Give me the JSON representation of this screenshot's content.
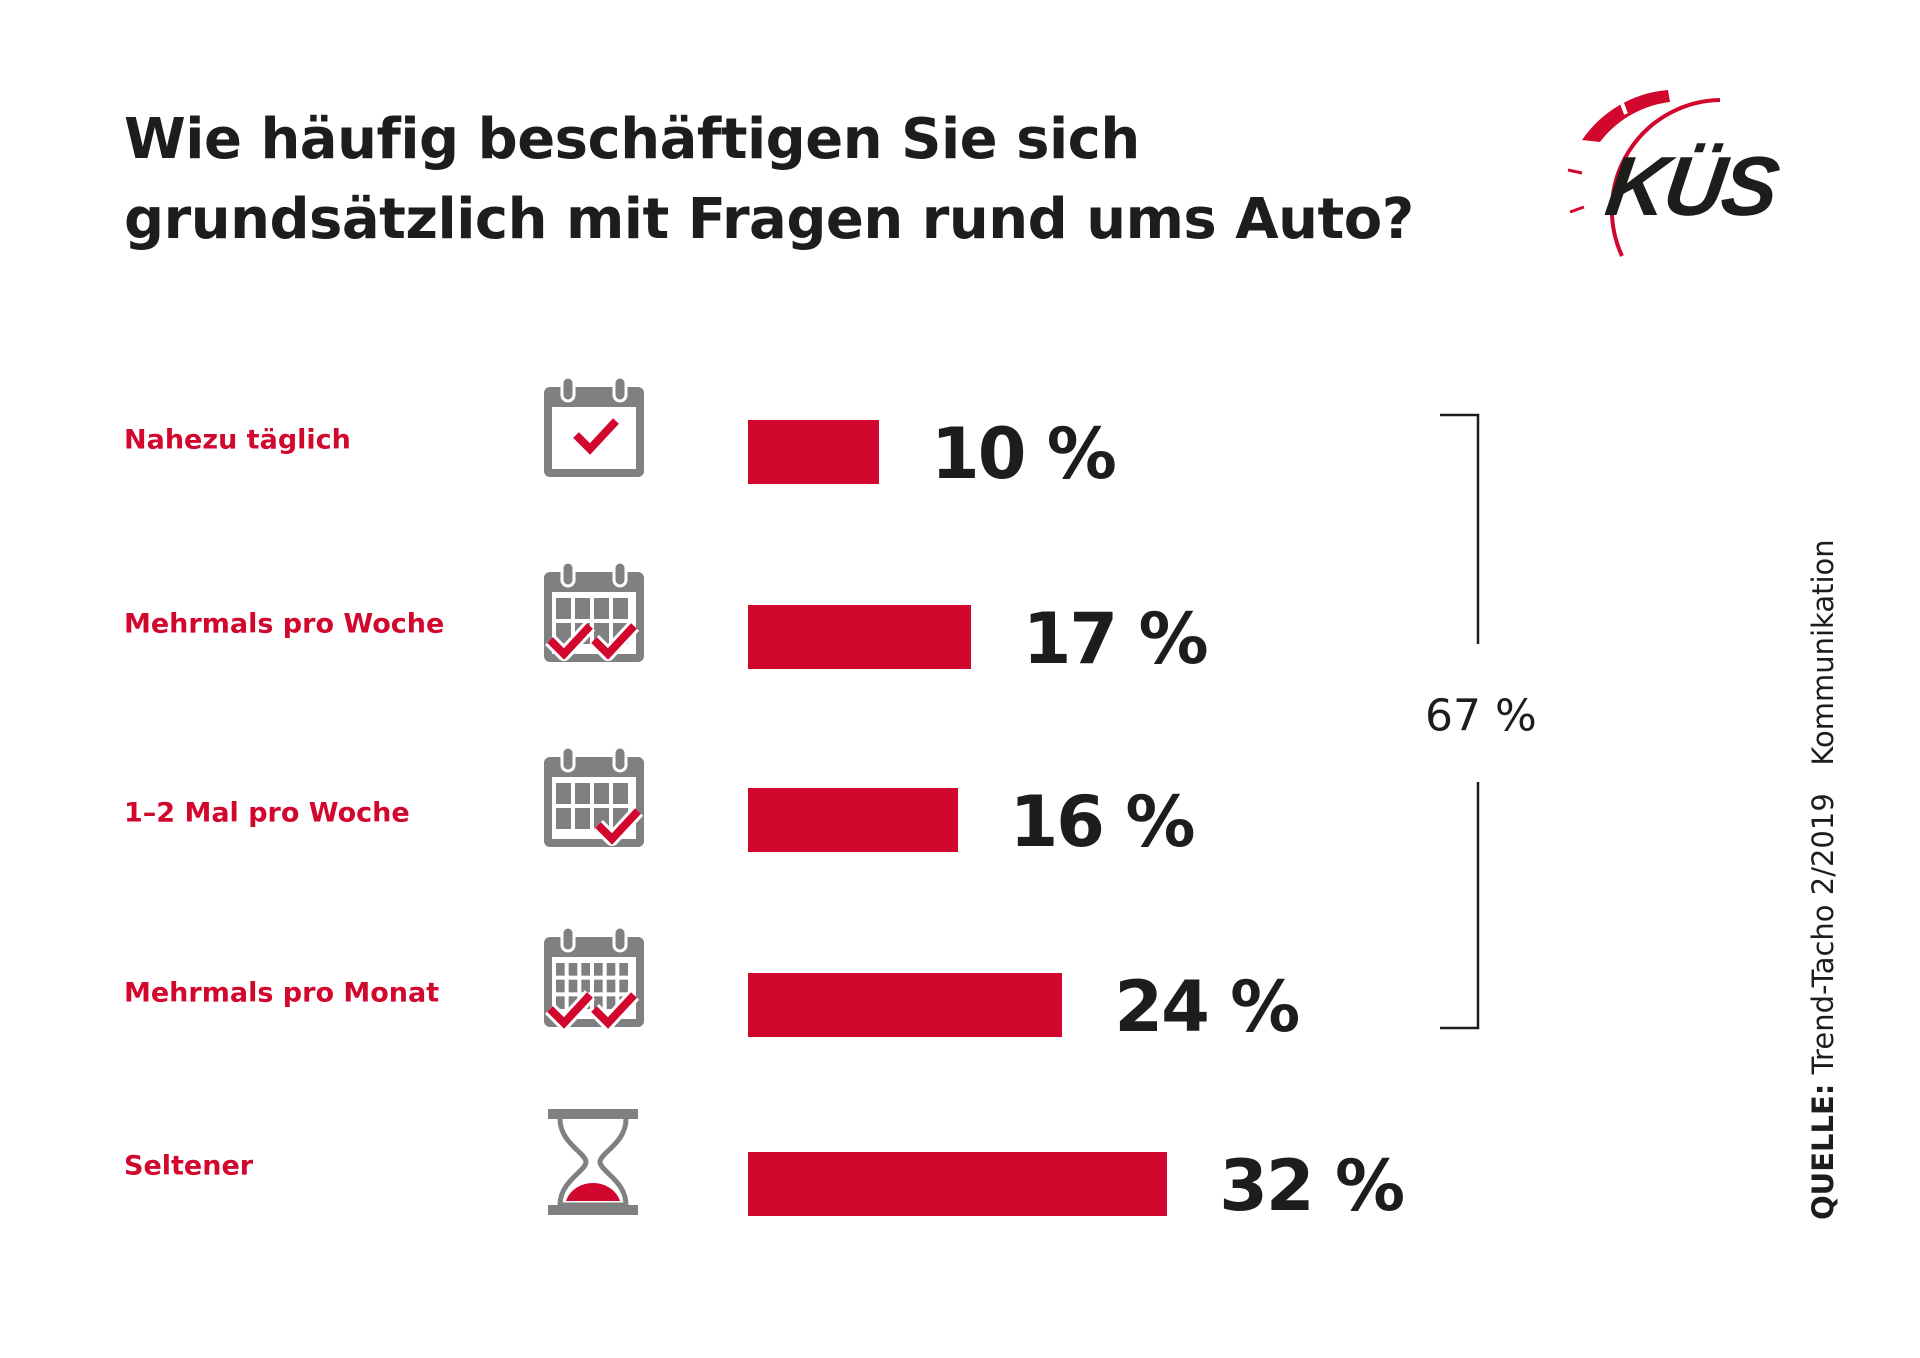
{
  "title_lines": [
    "Wie häufig beschäftigen Sie sich",
    "grundsätzlich mit Fragen rund ums Auto?"
  ],
  "logo": {
    "text": "KÜS"
  },
  "colors": {
    "accent": "#d2072e",
    "icon_gray": "#808080",
    "text": "#1d1d1b"
  },
  "chart_data": {
    "type": "bar",
    "orientation": "horizontal",
    "title": "Wie häufig beschäftigen Sie sich grundsätzlich mit Fragen rund ums Auto?",
    "categories": [
      "Nahezu täglich",
      "Mehrmals pro Woche",
      "1–2 Mal pro Woche",
      "Mehrmals pro Monat",
      "Seltener"
    ],
    "values": [
      10,
      17,
      16,
      24,
      32
    ],
    "value_labels": [
      "10 %",
      "17 %",
      "16 %",
      "24 %",
      "32 %"
    ],
    "icons": [
      "calendar-check-icon",
      "calendar-double-check-icon",
      "calendar-week-check-icon",
      "calendar-month-double-check-icon",
      "hourglass-icon"
    ],
    "unit": "%",
    "grid": false,
    "bracket": {
      "covers": [
        "Nahezu täglich",
        "Mehrmals pro Woche",
        "1–2 Mal pro Woche",
        "Mehrmals pro Monat"
      ],
      "label": "67 %",
      "value": 67
    }
  },
  "source": {
    "label": "QUELLE:",
    "text": "Trend-Tacho 2/2019   Kommunikation"
  }
}
